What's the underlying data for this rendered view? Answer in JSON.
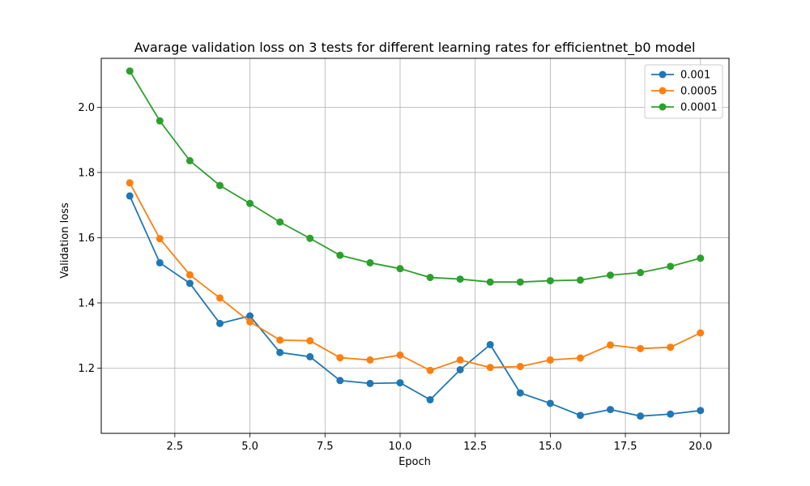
{
  "chart_data": {
    "type": "line",
    "title": "Avarage validation loss on 3 tests for different learning rates for efficientnet_b0 model",
    "xlabel": "Epoch",
    "ylabel": "Validation loss",
    "xlim": [
      0.05,
      20.95
    ],
    "ylim": [
      1.0,
      2.15
    ],
    "xticks": [
      2.5,
      5.0,
      7.5,
      10.0,
      12.5,
      15.0,
      17.5,
      20.0
    ],
    "xtick_labels": [
      "2.5",
      "5.0",
      "7.5",
      "10.0",
      "12.5",
      "15.0",
      "17.5",
      "20.0"
    ],
    "yticks": [
      1.2,
      1.4,
      1.6,
      1.8,
      2.0
    ],
    "ytick_labels": [
      "1.2",
      "1.4",
      "1.6",
      "1.8",
      "2.0"
    ],
    "grid": true,
    "legend_position": "top-right",
    "x": [
      1,
      2,
      3,
      4,
      5,
      6,
      7,
      8,
      9,
      10,
      11,
      12,
      13,
      14,
      15,
      16,
      17,
      18,
      19,
      20
    ],
    "series": [
      {
        "name": "0.001",
        "color": "#1f77b4",
        "values": [
          1.728,
          1.523,
          1.46,
          1.337,
          1.36,
          1.248,
          1.235,
          1.162,
          1.153,
          1.155,
          1.103,
          1.195,
          1.272,
          1.124,
          1.092,
          1.055,
          1.073,
          1.053,
          1.059,
          1.07
        ]
      },
      {
        "name": "0.0005",
        "color": "#ff7f0e",
        "values": [
          1.768,
          1.597,
          1.486,
          1.415,
          1.342,
          1.286,
          1.284,
          1.232,
          1.225,
          1.24,
          1.193,
          1.225,
          1.202,
          1.205,
          1.225,
          1.231,
          1.271,
          1.26,
          1.264,
          1.308
        ]
      },
      {
        "name": "0.0001",
        "color": "#2ca02c",
        "values": [
          2.111,
          1.958,
          1.836,
          1.76,
          1.705,
          1.648,
          1.598,
          1.546,
          1.523,
          1.505,
          1.478,
          1.473,
          1.464,
          1.464,
          1.468,
          1.47,
          1.485,
          1.493,
          1.512,
          1.537
        ]
      }
    ]
  }
}
